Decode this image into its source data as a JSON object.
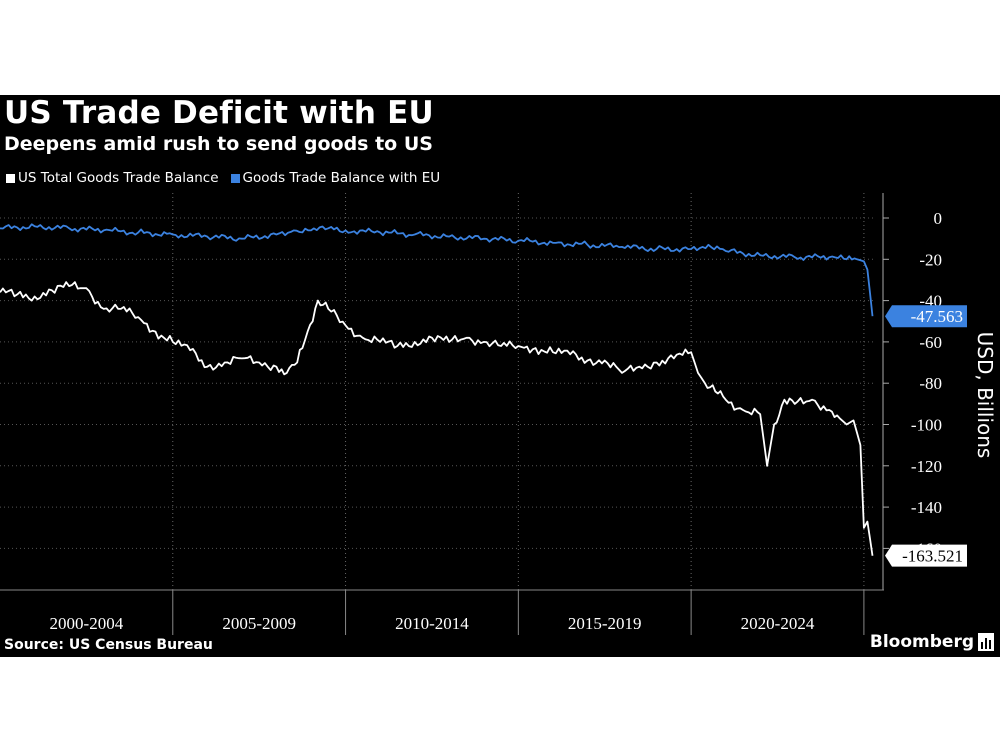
{
  "header": {
    "title": "US Trade Deficit with EU",
    "subtitle": "Deepens amid rush to send goods to US"
  },
  "footer": {
    "source": "Source: US Census Bureau",
    "brand": "Bloomberg"
  },
  "colors": {
    "background": "#000000",
    "total_series": "#ffffff",
    "eu_series": "#3b82e0",
    "grid": "#555555"
  },
  "chart_data": {
    "type": "line",
    "title": "US Trade Deficit with EU",
    "subtitle": "Deepens amid rush to send goods to US",
    "ylabel": "USD, Billions",
    "y_axis_position": "right",
    "ylim": [
      -170,
      5
    ],
    "yticks": [
      0,
      -20,
      -40,
      -60,
      -80,
      -100,
      -120,
      -140,
      -160
    ],
    "ytick_labels": [
      "0",
      "-20",
      "-40",
      "-60",
      "-80",
      "-100",
      "-120",
      "-140",
      "-160"
    ],
    "xlim": [
      2000.0,
      2025.35
    ],
    "xtick_labels": [
      "2000-2004",
      "2005-2009",
      "2010-2014",
      "2015-2019",
      "2020-2024"
    ],
    "x_separators": [
      2005,
      2010,
      2015,
      2020,
      2025
    ],
    "grid": true,
    "legend_position": "top-left",
    "series": [
      {
        "name": "US Total Goods Trade Balance",
        "color": "#ffffff",
        "last_value_label": "-163.521",
        "x": [
          2000.0,
          2000.5,
          2001.0,
          2001.5,
          2002.0,
          2002.5,
          2003.0,
          2003.5,
          2004.0,
          2004.5,
          2005.0,
          2005.5,
          2006.0,
          2006.5,
          2007.0,
          2007.5,
          2008.0,
          2008.3,
          2008.6,
          2008.9,
          2009.2,
          2009.5,
          2010.0,
          2010.5,
          2011.0,
          2011.5,
          2012.0,
          2012.5,
          2013.0,
          2013.5,
          2014.0,
          2014.5,
          2015.0,
          2015.5,
          2016.0,
          2016.5,
          2017.0,
          2017.5,
          2018.0,
          2018.5,
          2019.0,
          2019.5,
          2020.0,
          2020.2,
          2020.4,
          2020.7,
          2021.0,
          2021.5,
          2022.0,
          2022.2,
          2022.4,
          2022.7,
          2023.0,
          2023.5,
          2024.0,
          2024.3,
          2024.5,
          2024.7,
          2024.9,
          2025.0,
          2025.1,
          2025.25
        ],
        "y": [
          -36,
          -37,
          -38,
          -35,
          -33,
          -34,
          -44,
          -44,
          -48,
          -55,
          -60,
          -64,
          -72,
          -70,
          -68,
          -70,
          -72,
          -75,
          -70,
          -55,
          -40,
          -44,
          -52,
          -58,
          -60,
          -62,
          -60,
          -58,
          -60,
          -58,
          -60,
          -62,
          -62,
          -63,
          -65,
          -66,
          -69,
          -69,
          -75,
          -72,
          -70,
          -68,
          -65,
          -75,
          -80,
          -84,
          -88,
          -93,
          -95,
          -120,
          -100,
          -88,
          -90,
          -88,
          -93,
          -97,
          -100,
          -98,
          -110,
          -150,
          -147,
          -163.521
        ]
      },
      {
        "name": "Goods Trade Balance with EU",
        "color": "#3b82e0",
        "last_value_label": "-47.563",
        "x": [
          2000.0,
          2001.0,
          2002.0,
          2003.0,
          2004.0,
          2005.0,
          2006.0,
          2007.0,
          2008.0,
          2008.5,
          2009.0,
          2009.5,
          2010.0,
          2011.0,
          2012.0,
          2013.0,
          2014.0,
          2015.0,
          2016.0,
          2017.0,
          2018.0,
          2019.0,
          2020.0,
          2020.5,
          2021.0,
          2022.0,
          2023.0,
          2024.0,
          2024.5,
          2024.8,
          2025.0,
          2025.1,
          2025.25
        ],
        "y": [
          -5,
          -4,
          -5,
          -6,
          -7,
          -8,
          -9,
          -10,
          -8,
          -6,
          -6,
          -5,
          -6,
          -7,
          -8,
          -9,
          -10,
          -11,
          -12,
          -13,
          -14,
          -15,
          -15,
          -13,
          -16,
          -18,
          -19,
          -19,
          -20,
          -20,
          -21,
          -25,
          -47.563
        ]
      }
    ]
  }
}
